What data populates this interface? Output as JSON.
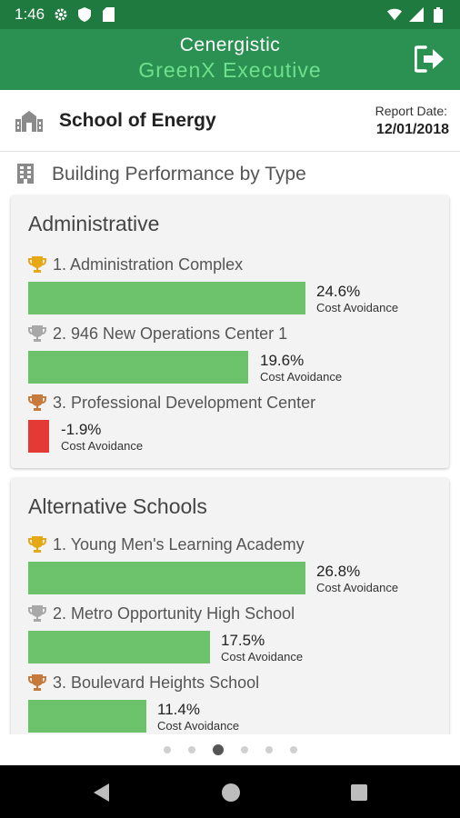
{
  "status_bar": {
    "time": "1:46",
    "icons": [
      "gear-icon",
      "shield-icon",
      "sd-card-icon",
      "wifi-icon",
      "signal-icon",
      "battery-icon"
    ]
  },
  "header": {
    "brand_line1": "Cenergistic",
    "brand_line2": "GreenX Executive",
    "colors": {
      "header_bg": "#2a9152",
      "status_bg": "#1f7a3f",
      "accent_green": "#6fe08c"
    }
  },
  "school": {
    "name": "School of Energy",
    "report_label": "Report Date:",
    "report_date": "12/01/2018"
  },
  "section": {
    "title": "Building Performance by Type"
  },
  "metric_label": "Cost Avoidance",
  "cards": [
    {
      "title": "Administrative",
      "entries": [
        {
          "rank_label": "1. Administration Complex",
          "value": "24.6%",
          "trophy": "gold"
        },
        {
          "rank_label": "2. 946 New Operations Center 1",
          "value": "19.6%",
          "trophy": "silver"
        },
        {
          "rank_label": "3. Professional Development Center",
          "value": "-1.9%",
          "trophy": "bronze"
        }
      ]
    },
    {
      "title": "Alternative Schools",
      "entries": [
        {
          "rank_label": "1. Young Men's Learning Academy",
          "value": "26.8%",
          "trophy": "gold"
        },
        {
          "rank_label": "2. Metro Opportunity High School",
          "value": "17.5%",
          "trophy": "silver"
        },
        {
          "rank_label": "3. Boulevard Heights School",
          "value": "11.4%",
          "trophy": "bronze"
        }
      ]
    }
  ],
  "pager": {
    "count": 6,
    "active": 2
  }
}
